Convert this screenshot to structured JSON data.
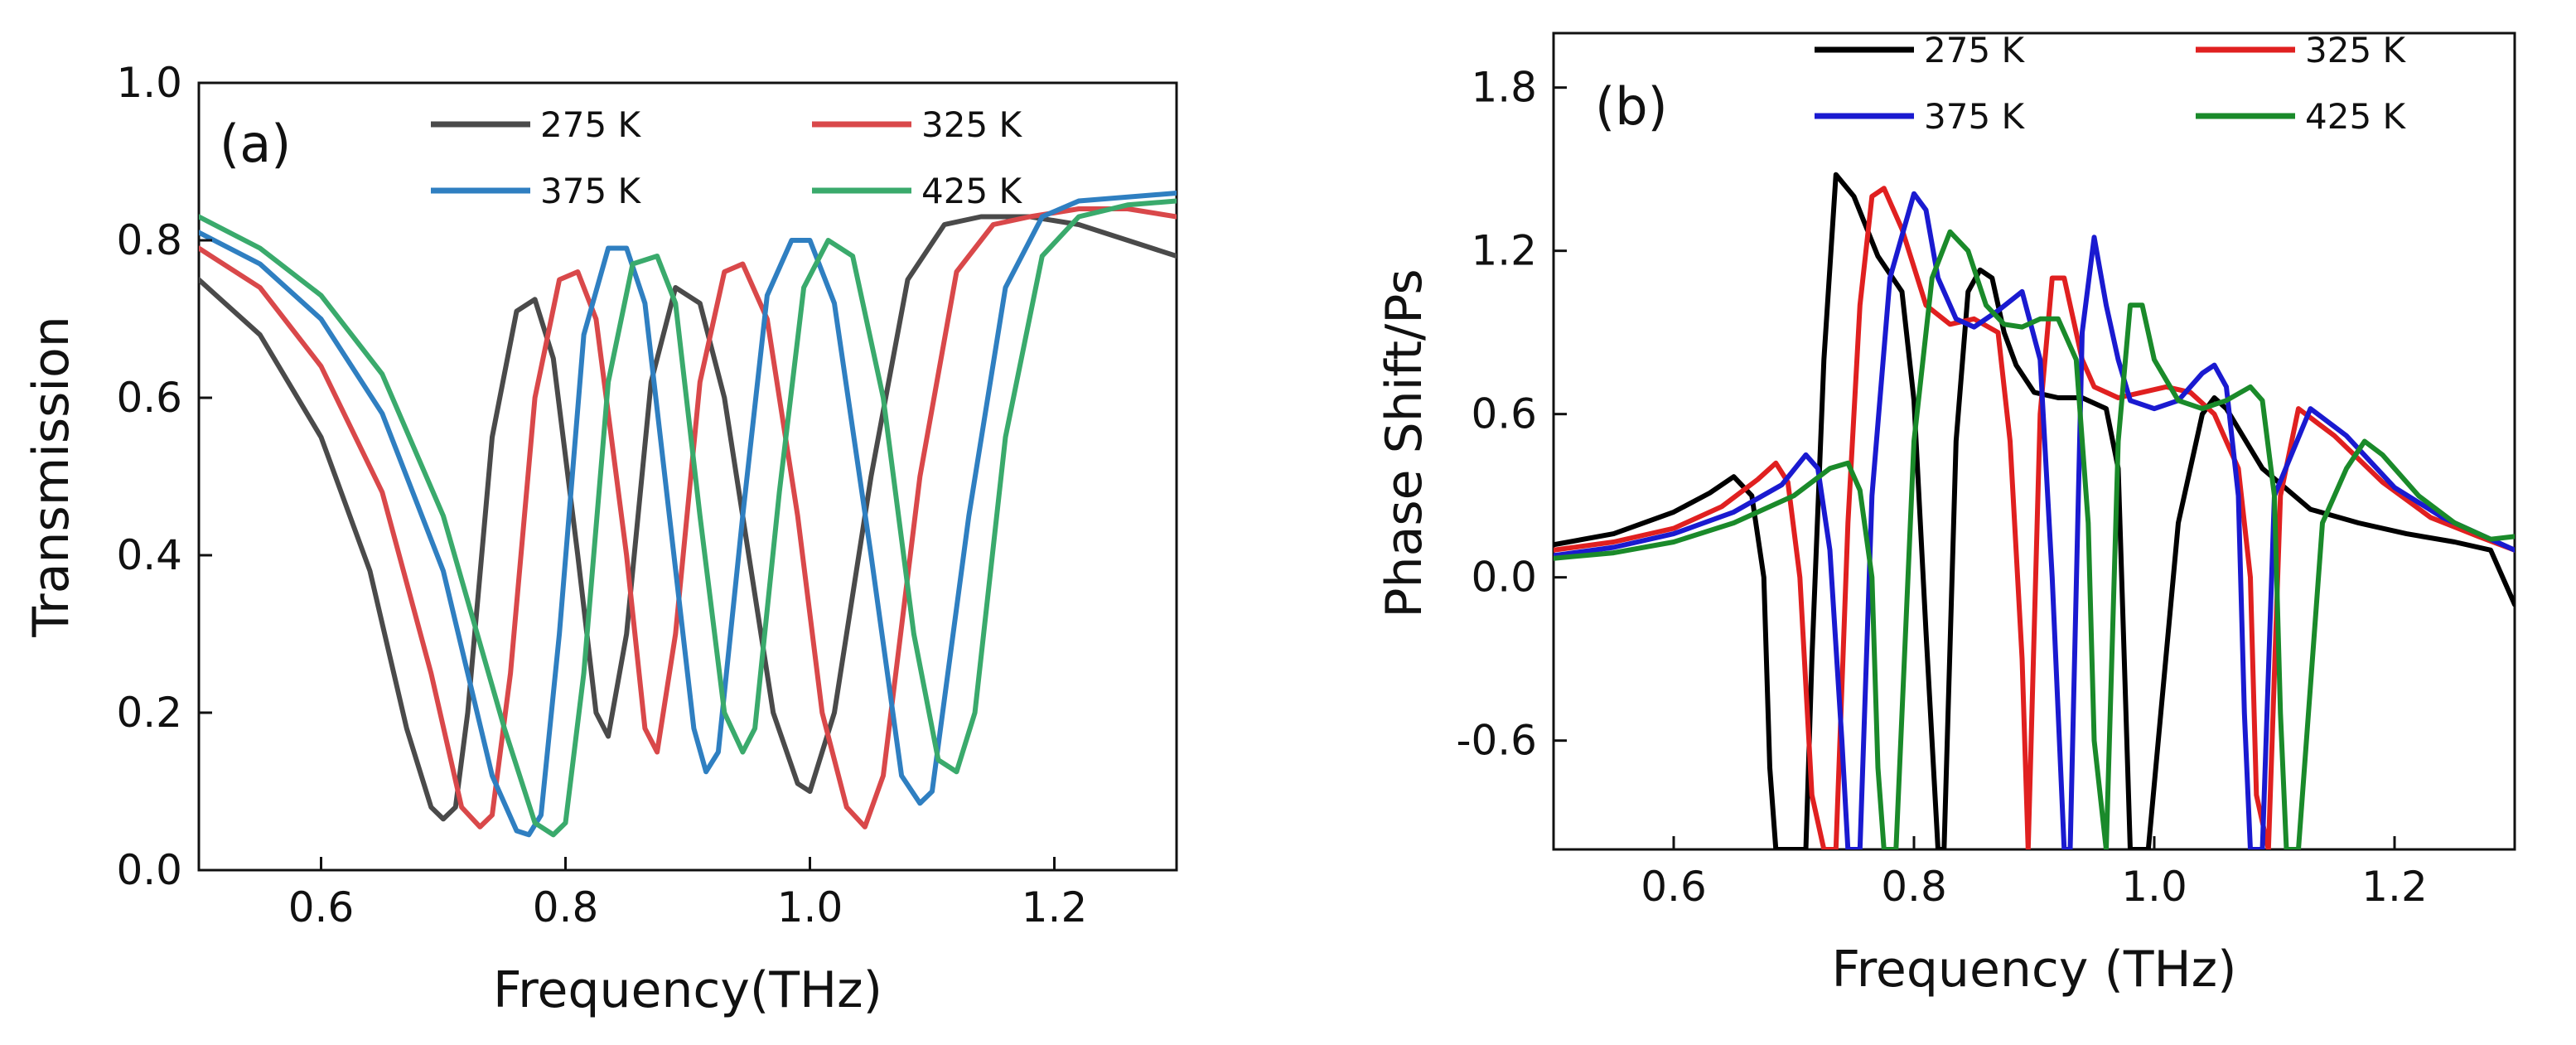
{
  "chart_data": [
    {
      "id": "a",
      "type": "line",
      "panel_label": "(a)",
      "title": "",
      "xlabel": "Frequency(THz)",
      "ylabel": "Transmission",
      "xlim": [
        0.5,
        1.3
      ],
      "ylim": [
        0.0,
        1.0
      ],
      "xticks": [
        0.6,
        0.8,
        1.0,
        1.2
      ],
      "xtick_labels": [
        "0.6",
        "0.8",
        "1.0",
        "1.2"
      ],
      "yticks": [
        0.0,
        0.2,
        0.4,
        0.6,
        0.8,
        1.0
      ],
      "ytick_labels": [
        "0.0",
        "0.2",
        "0.4",
        "0.6",
        "0.8",
        "1.0"
      ],
      "legend_position": "top-center",
      "series": [
        {
          "name": "275 K",
          "color": "#4a4a4a",
          "x": [
            0.5,
            0.55,
            0.6,
            0.64,
            0.67,
            0.69,
            0.7,
            0.71,
            0.72,
            0.74,
            0.76,
            0.775,
            0.79,
            0.81,
            0.825,
            0.835,
            0.85,
            0.87,
            0.89,
            0.91,
            0.93,
            0.95,
            0.97,
            0.99,
            1.0,
            1.02,
            1.05,
            1.08,
            1.11,
            1.14,
            1.18,
            1.22,
            1.26,
            1.3
          ],
          "y": [
            0.75,
            0.68,
            0.55,
            0.38,
            0.18,
            0.08,
            0.065,
            0.08,
            0.2,
            0.55,
            0.71,
            0.725,
            0.65,
            0.4,
            0.2,
            0.17,
            0.3,
            0.62,
            0.74,
            0.72,
            0.6,
            0.4,
            0.2,
            0.11,
            0.1,
            0.2,
            0.5,
            0.75,
            0.82,
            0.83,
            0.83,
            0.82,
            0.8,
            0.78
          ]
        },
        {
          "name": "325 K",
          "color": "#d9484a",
          "x": [
            0.5,
            0.55,
            0.6,
            0.65,
            0.69,
            0.715,
            0.73,
            0.74,
            0.755,
            0.775,
            0.795,
            0.81,
            0.825,
            0.85,
            0.865,
            0.875,
            0.89,
            0.91,
            0.93,
            0.945,
            0.965,
            0.99,
            1.01,
            1.03,
            1.045,
            1.06,
            1.09,
            1.12,
            1.15,
            1.18,
            1.22,
            1.26,
            1.3
          ],
          "y": [
            0.79,
            0.74,
            0.64,
            0.48,
            0.25,
            0.08,
            0.055,
            0.07,
            0.25,
            0.6,
            0.75,
            0.76,
            0.7,
            0.4,
            0.18,
            0.15,
            0.3,
            0.62,
            0.76,
            0.77,
            0.7,
            0.45,
            0.2,
            0.08,
            0.055,
            0.12,
            0.5,
            0.76,
            0.82,
            0.83,
            0.84,
            0.84,
            0.83
          ]
        },
        {
          "name": "375 K",
          "color": "#2f7fc1",
          "x": [
            0.5,
            0.55,
            0.6,
            0.65,
            0.7,
            0.74,
            0.76,
            0.77,
            0.78,
            0.795,
            0.815,
            0.835,
            0.85,
            0.865,
            0.885,
            0.905,
            0.915,
            0.925,
            0.945,
            0.965,
            0.985,
            1.0,
            1.02,
            1.05,
            1.075,
            1.09,
            1.1,
            1.13,
            1.16,
            1.19,
            1.22,
            1.26,
            1.3
          ],
          "y": [
            0.81,
            0.77,
            0.7,
            0.58,
            0.38,
            0.12,
            0.05,
            0.045,
            0.07,
            0.3,
            0.68,
            0.79,
            0.79,
            0.72,
            0.45,
            0.18,
            0.125,
            0.15,
            0.45,
            0.73,
            0.8,
            0.8,
            0.72,
            0.4,
            0.12,
            0.085,
            0.1,
            0.45,
            0.74,
            0.83,
            0.85,
            0.855,
            0.86
          ]
        },
        {
          "name": "425 K",
          "color": "#3aaa6c",
          "x": [
            0.5,
            0.55,
            0.6,
            0.65,
            0.7,
            0.75,
            0.775,
            0.79,
            0.8,
            0.815,
            0.835,
            0.855,
            0.875,
            0.89,
            0.91,
            0.93,
            0.945,
            0.955,
            0.975,
            0.995,
            1.015,
            1.035,
            1.06,
            1.085,
            1.105,
            1.12,
            1.135,
            1.16,
            1.19,
            1.22,
            1.26,
            1.3
          ],
          "y": [
            0.83,
            0.79,
            0.73,
            0.63,
            0.45,
            0.18,
            0.06,
            0.045,
            0.06,
            0.25,
            0.62,
            0.77,
            0.78,
            0.72,
            0.45,
            0.2,
            0.15,
            0.18,
            0.48,
            0.74,
            0.8,
            0.78,
            0.6,
            0.3,
            0.14,
            0.125,
            0.2,
            0.55,
            0.78,
            0.83,
            0.845,
            0.85
          ]
        }
      ]
    },
    {
      "id": "b",
      "type": "line",
      "panel_label": "(b)",
      "title": "",
      "xlabel": "Frequency (THz)",
      "ylabel": "Phase Shift/Ps",
      "xlim": [
        0.5,
        1.3
      ],
      "ylim": [
        -1.0,
        2.0
      ],
      "xticks": [
        0.6,
        0.8,
        1.0,
        1.2
      ],
      "xtick_labels": [
        "0.6",
        "0.8",
        "1.0",
        "1.2"
      ],
      "yticks": [
        -0.6,
        0.0,
        0.6,
        1.2,
        1.8
      ],
      "ytick_labels": [
        "-0.6",
        "0.0",
        "0.6",
        "1.2",
        "1.8"
      ],
      "legend_position": "top",
      "series": [
        {
          "name": "275 K",
          "color": "#000000",
          "x": [
            0.5,
            0.55,
            0.6,
            0.63,
            0.65,
            0.665,
            0.675,
            0.68,
            0.685,
            0.7,
            0.71,
            0.715,
            0.725,
            0.735,
            0.75,
            0.77,
            0.79,
            0.8,
            0.81,
            0.82,
            0.825,
            0.835,
            0.845,
            0.855,
            0.865,
            0.875,
            0.885,
            0.9,
            0.92,
            0.94,
            0.96,
            0.97,
            0.975,
            0.98,
            0.995,
            1.02,
            1.04,
            1.05,
            1.06,
            1.09,
            1.13,
            1.17,
            1.21,
            1.25,
            1.28,
            1.3
          ],
          "y": [
            0.12,
            0.16,
            0.24,
            0.31,
            0.37,
            0.3,
            0.0,
            -0.7,
            -1.0,
            -1.0,
            -1.0,
            -0.3,
            0.8,
            1.48,
            1.4,
            1.18,
            1.05,
            0.65,
            -0.2,
            -1.0,
            -1.0,
            0.5,
            1.05,
            1.13,
            1.1,
            0.9,
            0.78,
            0.68,
            0.66,
            0.66,
            0.62,
            0.4,
            -0.3,
            -1.0,
            -1.0,
            0.2,
            0.6,
            0.66,
            0.62,
            0.4,
            0.25,
            0.2,
            0.16,
            0.13,
            0.1,
            -0.1
          ]
        },
        {
          "name": "325 K",
          "color": "#e02020",
          "x": [
            0.5,
            0.55,
            0.6,
            0.64,
            0.67,
            0.685,
            0.695,
            0.705,
            0.715,
            0.725,
            0.735,
            0.745,
            0.755,
            0.765,
            0.775,
            0.79,
            0.81,
            0.83,
            0.85,
            0.87,
            0.88,
            0.89,
            0.895,
            0.905,
            0.915,
            0.925,
            0.935,
            0.94,
            0.95,
            0.96,
            0.97,
            0.99,
            1.01,
            1.03,
            1.05,
            1.07,
            1.08,
            1.085,
            1.095,
            1.105,
            1.12,
            1.15,
            1.19,
            1.23,
            1.27,
            1.3
          ],
          "y": [
            0.1,
            0.13,
            0.18,
            0.26,
            0.36,
            0.42,
            0.35,
            0.0,
            -0.8,
            -1.0,
            -1.0,
            0.2,
            1.0,
            1.4,
            1.43,
            1.28,
            1.0,
            0.93,
            0.95,
            0.9,
            0.5,
            -0.3,
            -1.0,
            0.6,
            1.1,
            1.1,
            0.9,
            0.8,
            0.7,
            0.68,
            0.66,
            0.68,
            0.7,
            0.68,
            0.6,
            0.4,
            0.0,
            -0.8,
            -1.0,
            0.3,
            0.62,
            0.52,
            0.35,
            0.22,
            0.15,
            0.1
          ]
        },
        {
          "name": "375 K",
          "color": "#1a1ad0",
          "x": [
            0.5,
            0.55,
            0.6,
            0.65,
            0.69,
            0.71,
            0.72,
            0.73,
            0.74,
            0.745,
            0.755,
            0.765,
            0.78,
            0.8,
            0.81,
            0.82,
            0.835,
            0.85,
            0.87,
            0.89,
            0.905,
            0.915,
            0.925,
            0.93,
            0.94,
            0.95,
            0.96,
            0.97,
            0.98,
            1.0,
            1.02,
            1.04,
            1.05,
            1.06,
            1.07,
            1.075,
            1.08,
            1.09,
            1.1,
            1.13,
            1.16,
            1.2,
            1.24,
            1.27,
            1.3
          ],
          "y": [
            0.08,
            0.11,
            0.16,
            0.24,
            0.34,
            0.45,
            0.4,
            0.1,
            -0.6,
            -1.0,
            -1.0,
            0.3,
            1.1,
            1.41,
            1.35,
            1.1,
            0.95,
            0.92,
            0.98,
            1.05,
            0.8,
            0.0,
            -1.0,
            -1.0,
            0.9,
            1.25,
            1.0,
            0.8,
            0.65,
            0.62,
            0.65,
            0.75,
            0.78,
            0.7,
            0.3,
            -0.5,
            -1.0,
            -1.0,
            0.3,
            0.62,
            0.52,
            0.33,
            0.22,
            0.16,
            0.1
          ]
        },
        {
          "name": "425 K",
          "color": "#1a8a2a",
          "x": [
            0.5,
            0.55,
            0.6,
            0.65,
            0.7,
            0.73,
            0.745,
            0.755,
            0.765,
            0.77,
            0.775,
            0.785,
            0.8,
            0.815,
            0.83,
            0.845,
            0.86,
            0.875,
            0.89,
            0.905,
            0.92,
            0.935,
            0.945,
            0.95,
            0.96,
            0.97,
            0.98,
            0.99,
            1.0,
            1.02,
            1.04,
            1.06,
            1.08,
            1.09,
            1.1,
            1.105,
            1.11,
            1.12,
            1.14,
            1.16,
            1.175,
            1.19,
            1.22,
            1.25,
            1.28,
            1.3
          ],
          "y": [
            0.07,
            0.09,
            0.13,
            0.2,
            0.3,
            0.4,
            0.42,
            0.32,
            0.0,
            -0.7,
            -1.0,
            -1.0,
            0.5,
            1.1,
            1.27,
            1.2,
            1.0,
            0.93,
            0.92,
            0.95,
            0.95,
            0.8,
            0.2,
            -0.6,
            -1.0,
            0.5,
            1.0,
            1.0,
            0.8,
            0.65,
            0.62,
            0.65,
            0.7,
            0.65,
            0.3,
            -0.5,
            -1.0,
            -1.0,
            0.2,
            0.4,
            0.5,
            0.45,
            0.3,
            0.2,
            0.14,
            0.15
          ]
        }
      ]
    }
  ]
}
